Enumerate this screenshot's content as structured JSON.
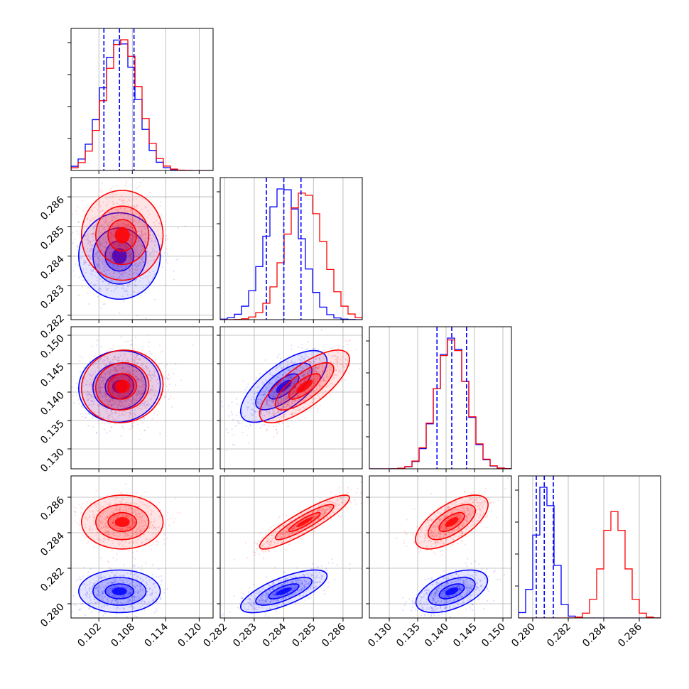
{
  "chart_data": {
    "type": "corner",
    "grid": true,
    "colors": {
      "blue": "#0000ff",
      "red": "#ff0000"
    },
    "series": [
      {
        "color": "#0000ff",
        "mean": [
          0.1057,
          0.284,
          0.141,
          0.2807
        ],
        "cov": [
          [
            9.3e-06,
            0.0,
            4.5e-07,
            0.0
          ],
          [
            0.0,
            3.7e-07,
            1.11e-06,
            2.2e-07
          ],
          [
            4.5e-07,
            1.11e-06,
            6.9e-06,
            6.7e-07
          ],
          [
            0.0,
            2.2e-07,
            6.7e-07,
            2.5e-07
          ]
        ],
        "quantiles": [
          [
            0.1029,
            0.1057,
            0.1083
          ],
          [
            0.28341,
            0.284,
            0.28458
          ],
          [
            0.1384,
            0.141,
            0.1436
          ],
          [
            0.2802,
            0.28065,
            0.28116
          ]
        ]
      },
      {
        "color": "#ff0000",
        "mean": [
          0.1062,
          0.2847,
          0.141,
          0.2846
        ],
        "cov": [
          [
            9.3e-06,
            0.0,
            4.5e-07,
            0.0
          ],
          [
            0.0,
            4e-07,
            1.26e-06,
            3.6e-07
          ],
          [
            4.5e-07,
            1.26e-06,
            7.1e-06,
            1.09e-06
          ],
          [
            0.0,
            3.6e-07,
            1.09e-06,
            4e-07
          ]
        ]
      }
    ],
    "axes": [
      {
        "range": [
          0.097,
          0.1225
        ],
        "ticks": [
          "0.102",
          "0.108",
          "0.114",
          "0.120"
        ]
      },
      {
        "range": [
          0.28185,
          0.28665
        ],
        "ticks": [
          "0.282",
          "0.283",
          "0.284",
          "0.285",
          "0.286"
        ]
      },
      {
        "range": [
          0.1265,
          0.1515
        ],
        "ticks": [
          "0.130",
          "0.135",
          "0.140",
          "0.145",
          "0.150"
        ]
      },
      {
        "range": [
          0.2792,
          0.2872
        ],
        "ticks": [
          "0.280",
          "0.282",
          "0.284",
          "0.286"
        ]
      }
    ]
  }
}
